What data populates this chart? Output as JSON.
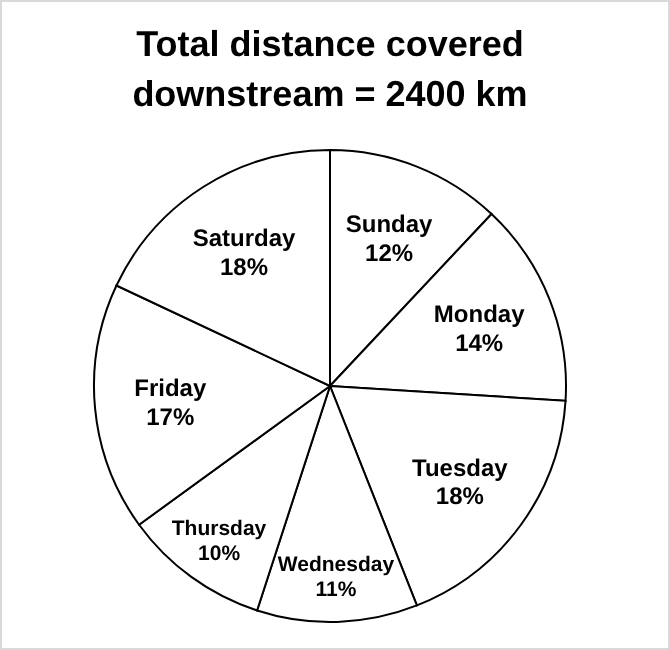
{
  "chart_data": {
    "type": "pie",
    "title": "Total distance covered downstream = 2400 km",
    "categories": [
      "Sunday",
      "Monday",
      "Tuesday",
      "Wednesday",
      "Thursday",
      "Friday",
      "Saturday"
    ],
    "values": [
      12,
      14,
      18,
      11,
      10,
      17,
      18
    ],
    "colors": [
      "#ffffff",
      "#ffffff",
      "#ffffff",
      "#ffffff",
      "#ffffff",
      "#ffffff",
      "#ffffff"
    ],
    "value_labels": [
      "12%",
      "14%",
      "18%",
      "11%",
      "10%",
      "17%",
      "18%"
    ]
  }
}
